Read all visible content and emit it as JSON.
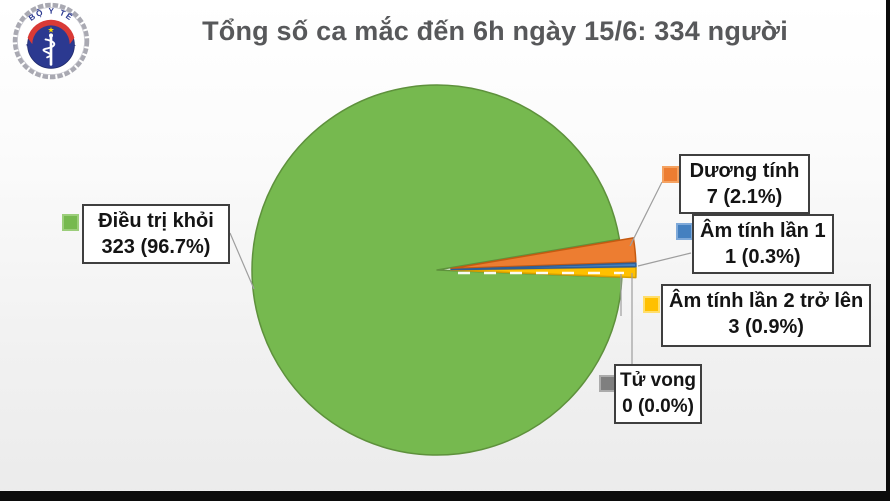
{
  "header": {
    "title": "Tổng số ca mắc đến 6h ngày 15/6: 334 người"
  },
  "logo": {
    "top_text": "BỘ Y TẾ",
    "bottom_text": "MINISTRY OF HEALTH",
    "star": "★"
  },
  "chart_data": {
    "type": "pie",
    "title": "Tổng số ca mắc đến 6h ngày 15/6: 334 người",
    "total": 334,
    "legend_position": "callout-boxes-around-pie",
    "slices": [
      {
        "label": "Điều trị khỏi",
        "value": 323,
        "percent": 96.7,
        "display": "323 (96.7%)",
        "color": "#76B94F",
        "stroke": "#5E913C",
        "marker_border": "#9CCE7B",
        "exploded": false
      },
      {
        "label": "Dương tính",
        "value": 7,
        "percent": 2.1,
        "display": "7 (2.1%)",
        "color": "#ED7D31",
        "stroke": "#C55A11",
        "marker_border": "#F4A261",
        "exploded": true
      },
      {
        "label": "Âm tính lần 1",
        "value": 1,
        "percent": 0.3,
        "display": "1 (0.3%)",
        "color": "#4480C0",
        "stroke": "#2E5F96",
        "marker_border": "#7EA9D9",
        "exploded": true
      },
      {
        "label": "Âm tính lần 2 trở lên",
        "value": 3,
        "percent": 0.9,
        "display": "3 (0.9%)",
        "color": "#FFC000",
        "stroke": "#D49E00",
        "marker_border": "#FFDE6B",
        "exploded": true
      },
      {
        "label": "Tử vong",
        "value": 0,
        "percent": 0.0,
        "display": "0 (0.0%)",
        "color": "#7F7F7F",
        "stroke": "#6B6B6B",
        "marker_border": "#ABABAB",
        "exploded": false
      }
    ]
  }
}
